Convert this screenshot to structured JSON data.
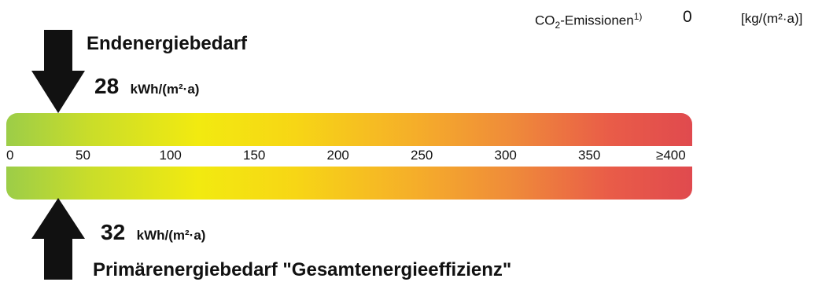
{
  "co2": {
    "label": "CO",
    "label_sub": "2",
    "label_suffix": "-Emissionen",
    "footnote": "1)",
    "value": "0",
    "unit": "[kg/(m²·a)]"
  },
  "endenergie": {
    "title": "Endenergiebedarf",
    "value": "28",
    "unit": "kWh/(m²·a)",
    "scale_value": 28
  },
  "primaerenergie": {
    "title": "Primärenergiebedarf \"Gesamtenergieeffizienz\"",
    "value": "32",
    "unit": "kWh/(m²·a)",
    "scale_value": 32
  },
  "scale": {
    "max": 400,
    "ticks": [
      {
        "label": "0",
        "value": 0
      },
      {
        "label": "50",
        "value": 50
      },
      {
        "label": "100",
        "value": 100
      },
      {
        "label": "150",
        "value": 150
      },
      {
        "label": "200",
        "value": 200
      },
      {
        "label": "250",
        "value": 250
      },
      {
        "label": "300",
        "value": 300
      },
      {
        "label": "350",
        "value": 350
      },
      {
        "label": "≥400",
        "value": 400
      }
    ],
    "colors": [
      "#9ccd48",
      "#f2ea10",
      "#f5ad2a",
      "#e04a4e"
    ]
  }
}
